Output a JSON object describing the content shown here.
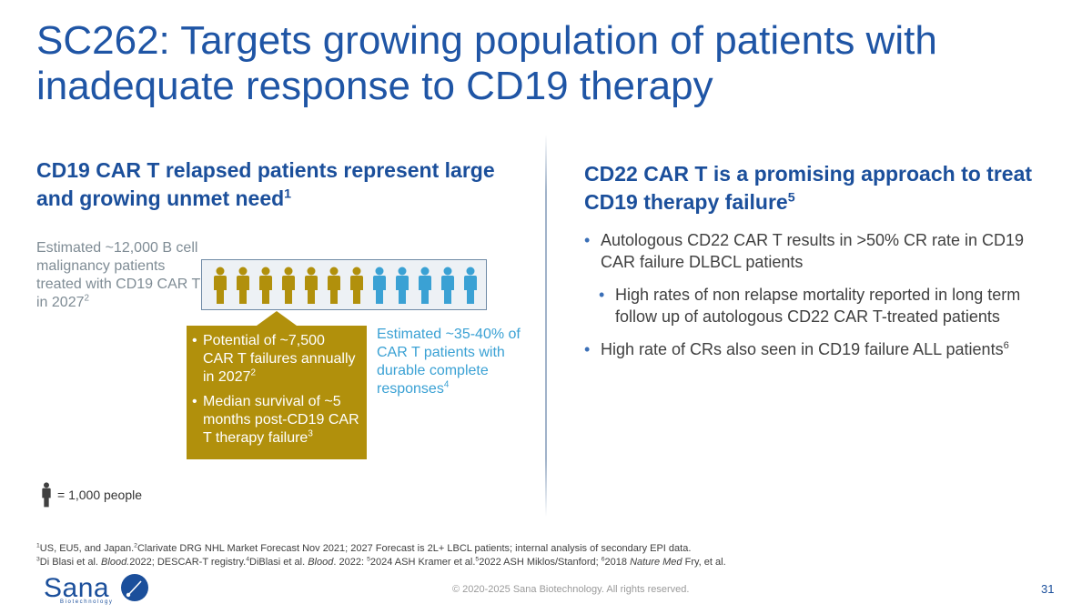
{
  "title": "SC262: Targets growing population of patients with inadequate response to CD19 therapy",
  "left": {
    "heading": "CD19 CAR T relapsed patients represent large and growing unmet need",
    "heading_sup": "1",
    "estimate_text": "Estimated ~12,000 B cell malignancy patients treated with CD19 CAR T in 2027",
    "estimate_sup": "2",
    "gold_count": 7,
    "blue_count": 5,
    "colors": {
      "gold": "#b1900c",
      "blue": "#3aa1d4"
    },
    "callout": {
      "bullet_glyph": "•",
      "b1": "Potential of ~7,500 CAR T failures annually in 2027",
      "b1_sup": "2",
      "b2": "Median survival of ~5 months post-CD19 CAR T therapy failure",
      "b2_sup": "3"
    },
    "durable_text": "Estimated ~35-40% of CAR T patients with durable complete responses",
    "durable_sup": "4",
    "legend_text": "= 1,000 people"
  },
  "right": {
    "heading": "CD22 CAR T is a promising approach to treat CD19 therapy failure",
    "heading_sup": "5",
    "bullet_glyph": "•",
    "b1": "Autologous CD22 CAR T results in >50% CR rate in CD19 CAR failure DLBCL patients",
    "b1_sub": "High rates of non relapse mortality reported in long term follow up of autologous CD22 CAR T-treated patients",
    "b2": "High rate of CRs also seen in CD19 failure ALL patients",
    "b2_sup": "6"
  },
  "footnotes": {
    "l1_s1": "1",
    "l1_t1": "US, EU5, and Japan.",
    "l1_s2": "2",
    "l1_t2": "Clarivate DRG NHL Market Forecast Nov 2021; 2027 Forecast is 2L+ LBCL patients; internal analysis of secondary EPI data.",
    "l2_s1": "3",
    "l2_t1": "Di Blasi et al. ",
    "l2_i1": "Blood.",
    "l2_t2": "2022; DESCAR-T registry.",
    "l2_s2": "4",
    "l2_t3": "DiBlasi et al. ",
    "l2_i2": "Blood",
    "l2_t4": ". 2022: ",
    "l2_s3": "5",
    "l2_t5": "2024 ASH Kramer et al.",
    "l2_s4": "5",
    "l2_t6": "2022 ASH Miklos/Stanford; ",
    "l2_s5": "6",
    "l2_t7": "2018 ",
    "l2_i3": "Nature Med",
    "l2_t8": " Fry, et al."
  },
  "logo": {
    "word": "Sana",
    "sub": "Biotechnology",
    "color": "#1b4f9b"
  },
  "copyright": "© 2020-2025 Sana Biotechnology. All rights reserved.",
  "page_number": "31"
}
